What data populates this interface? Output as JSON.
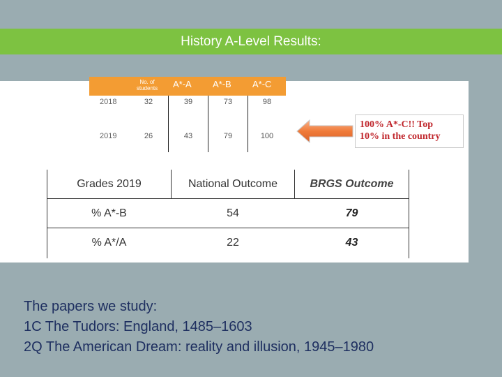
{
  "slide": {
    "title": "History A-Level Results:"
  },
  "results_table": {
    "headers": [
      "No. of students",
      "A*-A",
      "A*-B",
      "A*-C"
    ],
    "rows": [
      {
        "year": "2018",
        "students": "32",
        "a_star_a": "39",
        "a_star_b": "73",
        "a_star_c": "98"
      },
      {
        "year": "2019",
        "students": "26",
        "a_star_a": "43",
        "a_star_b": "79",
        "a_star_c": "100"
      }
    ],
    "header_color": "#f39c33"
  },
  "callout": {
    "line1": "100% A*-C!! Top",
    "line2": "10% in the country",
    "arrow_color": "#f07b3a"
  },
  "grades_table": {
    "headers": [
      "Grades 2019",
      "National Outcome",
      "BRGS Outcome"
    ],
    "rows": [
      {
        "label": "% A*-B",
        "national": "54",
        "brgs": "79"
      },
      {
        "label": "% A*/A",
        "national": "22",
        "brgs": "43"
      }
    ]
  },
  "papers": {
    "heading": "The papers we study:",
    "items": [
      "1C The Tudors: England, 1485–1603",
      "2Q The American Dream: reality and illusion, 1945–1980"
    ]
  }
}
